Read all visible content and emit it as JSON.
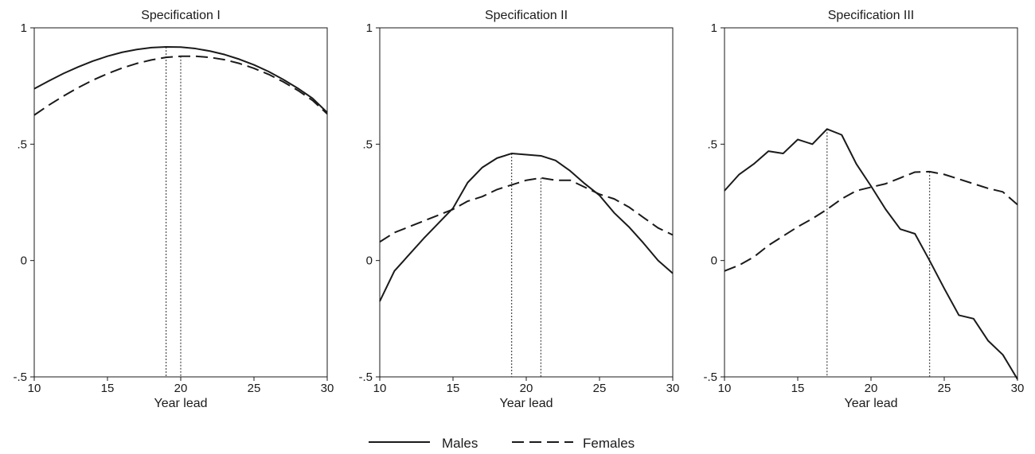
{
  "figure": {
    "legend": [
      {
        "label": "Males",
        "style": "solid"
      },
      {
        "label": "Females",
        "style": "dashed"
      }
    ]
  },
  "chart_data": [
    {
      "type": "line",
      "title": "Specification I",
      "xlabel": "Year lead",
      "ylabel": "",
      "xlim": [
        10,
        30
      ],
      "ylim": [
        -0.5,
        1
      ],
      "xticks": [
        10,
        15,
        20,
        25,
        30
      ],
      "xtick_labels": [
        "10",
        "15",
        "20",
        "25",
        "30"
      ],
      "yticks": [
        -0.5,
        0,
        0.5,
        1
      ],
      "ytick_labels": [
        "-.5",
        "0",
        ".5",
        "1"
      ],
      "x": [
        10,
        11,
        12,
        13,
        14,
        15,
        16,
        17,
        18,
        19,
        20,
        21,
        22,
        23,
        24,
        25,
        26,
        27,
        28,
        29,
        30
      ],
      "series": [
        {
          "name": "Males",
          "style": "solid",
          "color": "#1a1a1a",
          "values": [
            0.738,
            0.772,
            0.804,
            0.832,
            0.857,
            0.878,
            0.895,
            0.907,
            0.915,
            0.918,
            0.917,
            0.911,
            0.9,
            0.885,
            0.865,
            0.841,
            0.812,
            0.778,
            0.74,
            0.697,
            0.636
          ]
        },
        {
          "name": "Females",
          "style": "dashed",
          "color": "#1a1a1a",
          "values": [
            0.625,
            0.668,
            0.707,
            0.743,
            0.775,
            0.803,
            0.827,
            0.847,
            0.862,
            0.873,
            0.878,
            0.878,
            0.873,
            0.863,
            0.847,
            0.826,
            0.8,
            0.768,
            0.731,
            0.688,
            0.63
          ]
        }
      ],
      "markers": [
        19,
        20
      ]
    },
    {
      "type": "line",
      "title": "Specification II",
      "xlabel": "Year lead",
      "ylabel": "",
      "xlim": [
        10,
        30
      ],
      "ylim": [
        -0.5,
        1
      ],
      "xticks": [
        10,
        15,
        20,
        25,
        30
      ],
      "xtick_labels": [
        "10",
        "15",
        "20",
        "25",
        "30"
      ],
      "yticks": [
        -0.5,
        0,
        0.5,
        1
      ],
      "ytick_labels": [
        "-.5",
        "0",
        ".5",
        "1"
      ],
      "x": [
        10,
        11,
        12,
        13,
        14,
        15,
        16,
        17,
        18,
        19,
        20,
        21,
        22,
        23,
        24,
        25,
        26,
        27,
        28,
        29,
        30
      ],
      "series": [
        {
          "name": "Males",
          "style": "solid",
          "color": "#1a1a1a",
          "values": [
            -0.175,
            -0.045,
            0.025,
            0.095,
            0.16,
            0.225,
            0.335,
            0.4,
            0.44,
            0.46,
            0.455,
            0.45,
            0.43,
            0.385,
            0.33,
            0.28,
            0.205,
            0.145,
            0.075,
            0.0,
            -0.055
          ]
        },
        {
          "name": "Females",
          "style": "dashed",
          "color": "#1a1a1a",
          "values": [
            0.08,
            0.12,
            0.145,
            0.17,
            0.195,
            0.22,
            0.255,
            0.275,
            0.305,
            0.325,
            0.345,
            0.355,
            0.345,
            0.345,
            0.315,
            0.285,
            0.265,
            0.23,
            0.185,
            0.14,
            0.11
          ]
        }
      ],
      "markers": [
        19,
        21
      ]
    },
    {
      "type": "line",
      "title": "Specification III",
      "xlabel": "Year lead",
      "ylabel": "",
      "xlim": [
        10,
        30
      ],
      "ylim": [
        -0.5,
        1
      ],
      "xticks": [
        10,
        15,
        20,
        25,
        30
      ],
      "xtick_labels": [
        "10",
        "15",
        "20",
        "25",
        "30"
      ],
      "yticks": [
        -0.5,
        0,
        0.5,
        1
      ],
      "ytick_labels": [
        "-.5",
        "0",
        ".5",
        "1"
      ],
      "x": [
        10,
        11,
        12,
        13,
        14,
        15,
        16,
        17,
        18,
        19,
        20,
        21,
        22,
        23,
        24,
        25,
        26,
        27,
        28,
        29,
        30
      ],
      "series": [
        {
          "name": "Males",
          "style": "solid",
          "color": "#1a1a1a",
          "values": [
            0.3,
            0.37,
            0.415,
            0.47,
            0.46,
            0.52,
            0.5,
            0.565,
            0.54,
            0.415,
            0.32,
            0.22,
            0.135,
            0.115,
            0.0,
            -0.12,
            -0.235,
            -0.25,
            -0.345,
            -0.405,
            -0.51
          ]
        },
        {
          "name": "Females",
          "style": "dashed",
          "color": "#1a1a1a",
          "values": [
            -0.045,
            -0.02,
            0.015,
            0.065,
            0.105,
            0.145,
            0.18,
            0.22,
            0.265,
            0.3,
            0.315,
            0.33,
            0.355,
            0.38,
            0.382,
            0.37,
            0.35,
            0.33,
            0.31,
            0.295,
            0.24
          ]
        }
      ],
      "markers": [
        17,
        24
      ]
    }
  ]
}
